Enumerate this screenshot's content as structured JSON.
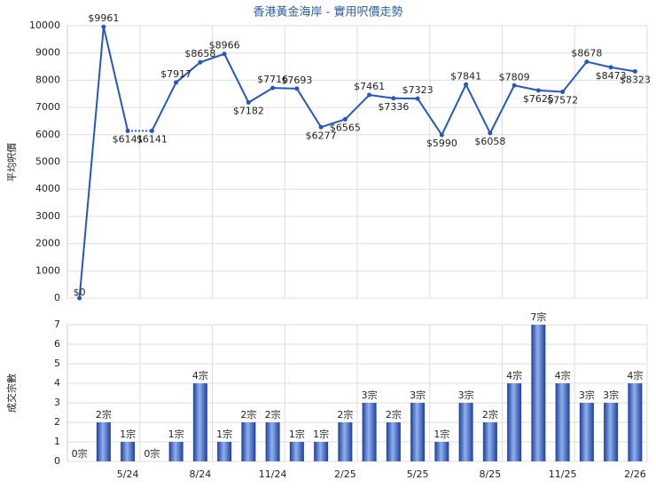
{
  "chart_data": [
    {
      "type": "line",
      "title": "香港黃金海岸 - 實用呎價走勢",
      "y_label": "平均呎價",
      "color": "#2458c0",
      "values": [
        0,
        9961,
        6141,
        6141,
        7917,
        8658,
        8966,
        7182,
        7716,
        7693,
        6277,
        6565,
        7461,
        7336,
        7323,
        5990,
        7841,
        6058,
        7809,
        7625,
        7572,
        8678,
        8473,
        8323
      ],
      "value_labels": [
        "$0",
        "$9961",
        "$6141",
        "$6141",
        "$7917",
        "$8658",
        "$8966",
        "$7182",
        "$7716",
        "$7693",
        "$6277",
        "$6565",
        "$7461",
        "$7336",
        "$7323",
        "$5990",
        "$7841",
        "$6058",
        "$7809",
        "$7625",
        "$7572",
        "$8678",
        "$8473",
        "$8323"
      ],
      "ylim": [
        0,
        10000
      ],
      "yticks": [
        0,
        1000,
        2000,
        3000,
        4000,
        5000,
        6000,
        7000,
        8000,
        9000,
        10000
      ],
      "grid": true
    },
    {
      "type": "bar",
      "y_label": "成交宗數",
      "color": "#3a66c8",
      "categories": [
        null,
        null,
        "5/24",
        null,
        null,
        "8/24",
        null,
        null,
        "11/24",
        null,
        null,
        "2/25",
        null,
        null,
        "5/25",
        null,
        null,
        "8/25",
        null,
        null,
        "11/25",
        null,
        null,
        "2/26"
      ],
      "values": [
        0,
        2,
        1,
        0,
        1,
        4,
        1,
        2,
        2,
        1,
        1,
        2,
        3,
        2,
        3,
        1,
        3,
        2,
        4,
        7,
        4,
        3,
        3,
        4
      ],
      "value_labels": [
        "0宗",
        "2宗",
        "1宗",
        "0宗",
        "1宗",
        "4宗",
        "1宗",
        "2宗",
        "2宗",
        "1宗",
        "1宗",
        "2宗",
        "3宗",
        "2宗",
        "3宗",
        "1宗",
        "3宗",
        "2宗",
        "4宗",
        "7宗",
        "4宗",
        "3宗",
        "3宗",
        "4宗"
      ],
      "ylim": [
        0,
        7
      ],
      "yticks": [
        0,
        1,
        2,
        3,
        4,
        5,
        6,
        7
      ],
      "grid": true
    }
  ]
}
